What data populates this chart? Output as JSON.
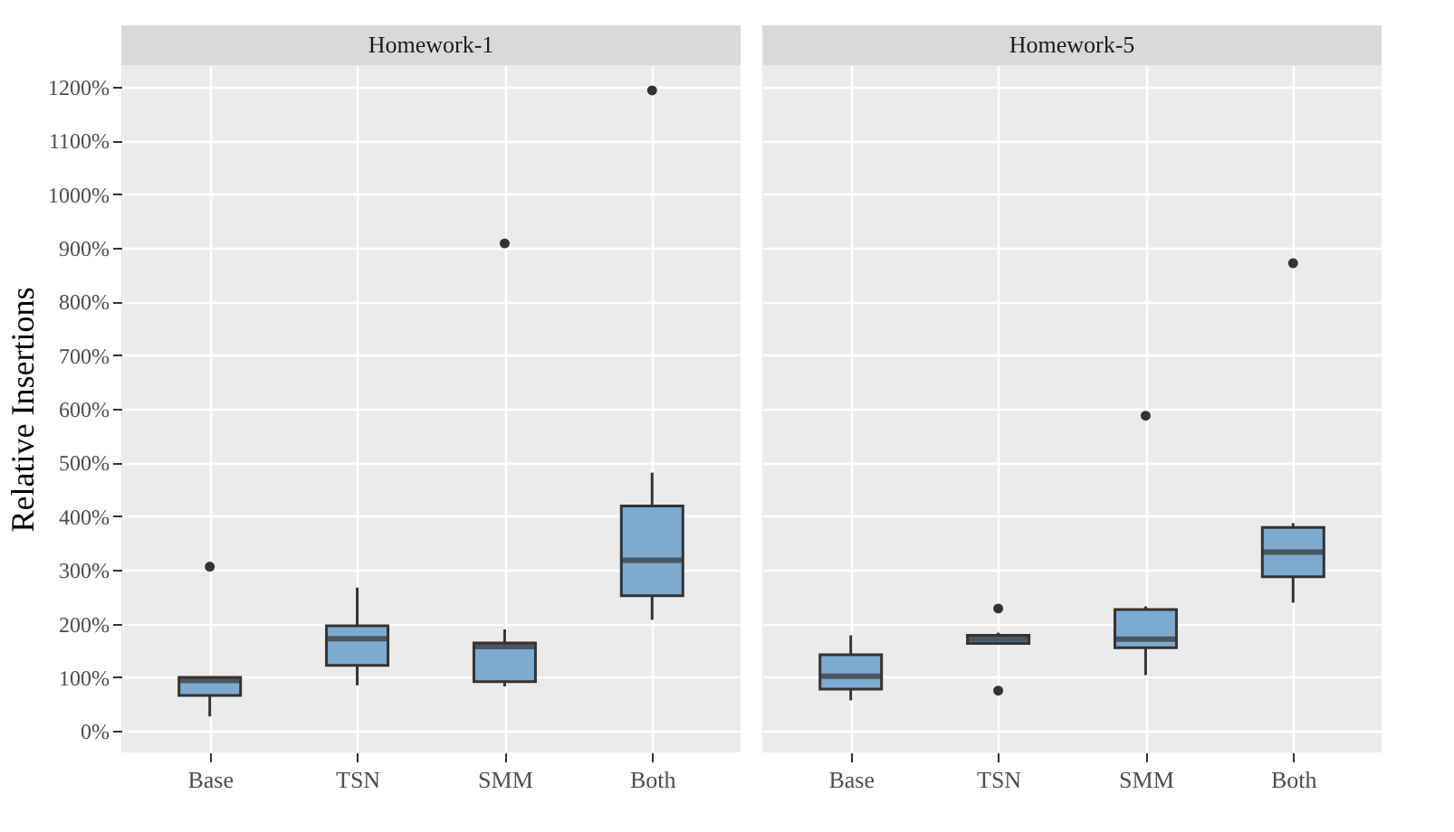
{
  "chart_data": [
    {
      "type": "box",
      "title": "Homework-1",
      "ylabel": "Relative Insertions",
      "categories": [
        "Base",
        "TSN",
        "SMM",
        "Both"
      ],
      "ylim": [
        -40,
        1240
      ],
      "yticks": [
        {
          "value": 0,
          "label": "0%"
        },
        {
          "value": 100,
          "label": "100%"
        },
        {
          "value": 200,
          "label": "200%"
        },
        {
          "value": 300,
          "label": "300%"
        },
        {
          "value": 400,
          "label": "400%"
        },
        {
          "value": 500,
          "label": "500%"
        },
        {
          "value": 600,
          "label": "600%"
        },
        {
          "value": 700,
          "label": "700%"
        },
        {
          "value": 800,
          "label": "800%"
        },
        {
          "value": 900,
          "label": "900%"
        },
        {
          "value": 1000,
          "label": "1000%"
        },
        {
          "value": 1100,
          "label": "1100%"
        },
        {
          "value": 1200,
          "label": "1200%"
        }
      ],
      "grid": true,
      "series": [
        {
          "color": "#7eaacf",
          "boxes": [
            {
              "low": 27,
              "q1": 66,
              "median": 94,
              "q3": 100,
              "high": 100,
              "outliers": [
                306
              ]
            },
            {
              "low": 85,
              "q1": 122,
              "median": 172,
              "q3": 196,
              "high": 267
            },
            {
              "low": 83,
              "q1": 92,
              "median": 157,
              "q3": 164,
              "high": 189,
              "outliers": [
                908
              ]
            },
            {
              "low": 207,
              "q1": 252,
              "median": 318,
              "q3": 419,
              "high": 481,
              "outliers": [
                1193
              ]
            }
          ]
        }
      ]
    },
    {
      "type": "box",
      "title": "Homework-5",
      "categories": [
        "Base",
        "TSN",
        "SMM",
        "Both"
      ],
      "ylim": [
        -40,
        1240
      ],
      "yticks": [
        0,
        100,
        200,
        300,
        400,
        500,
        600,
        700,
        800,
        900,
        1000,
        1100,
        1200
      ],
      "grid": true,
      "tick_labels": "x",
      "series": [
        {
          "color": "#7eaacf",
          "boxes": [
            {
              "low": 57,
              "q1": 78,
              "median": 102,
              "q3": 142,
              "high": 178
            },
            {
              "low": 163,
              "q1": 163,
              "median": 171,
              "q3": 178,
              "high": 183,
              "outliers": [
                228,
                75
              ]
            },
            {
              "low": 104,
              "q1": 155,
              "median": 171,
              "q3": 226,
              "high": 232,
              "outliers": [
                587
              ]
            },
            {
              "low": 239,
              "q1": 287,
              "median": 333,
              "q3": 379,
              "high": 387,
              "outliers": [
                871
              ]
            }
          ]
        }
      ]
    }
  ]
}
